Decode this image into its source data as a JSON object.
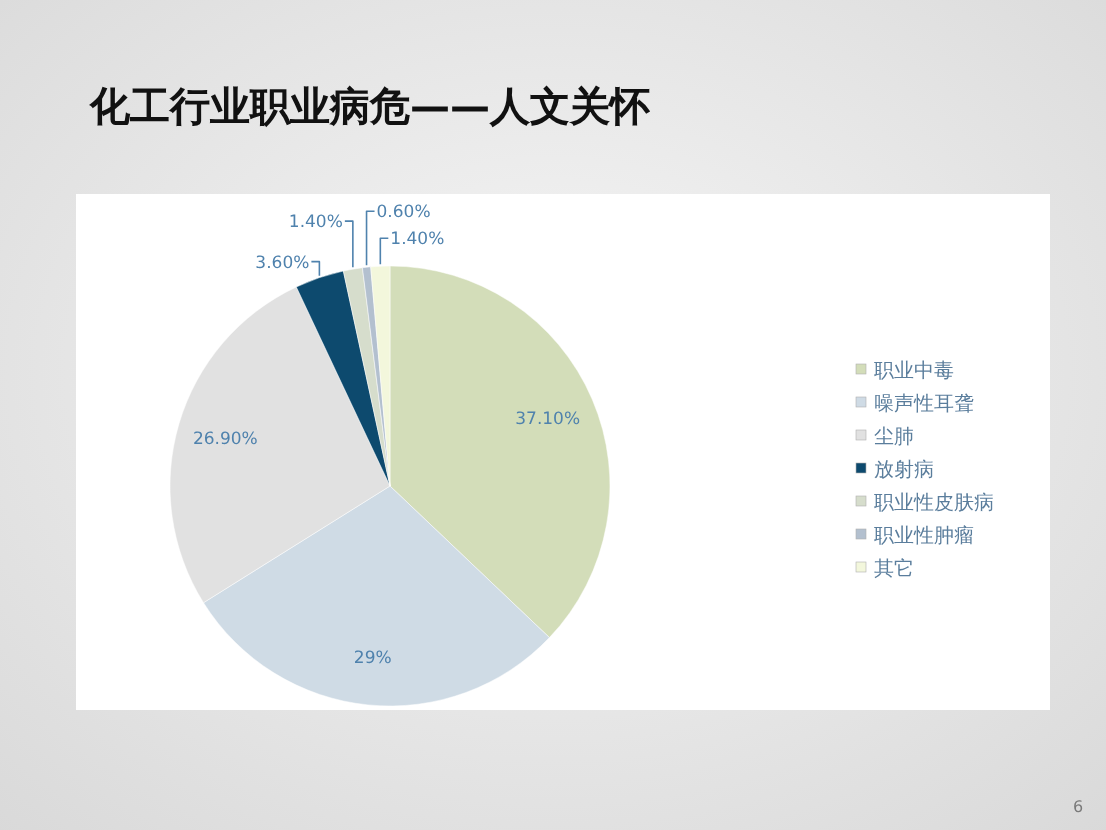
{
  "chart_data": {
    "type": "pie",
    "title": "化工行业职业病危——人文关怀",
    "categories": [
      "职业中毒",
      "噪声性耳聋",
      "尘肺",
      "放射病",
      "职业性皮肤病",
      "职业性肿瘤",
      "其它"
    ],
    "values": [
      37.1,
      29,
      26.9,
      3.6,
      1.4,
      0.6,
      1.4
    ],
    "colors": [
      "#d3ddb9",
      "#cfdbe5",
      "#e1e1e1",
      "#0d4a6e",
      "#d6ddcc",
      "#b3c0cf",
      "#f3f7dc"
    ],
    "value_labels": [
      "37.10%",
      "29%",
      "26.90%",
      "3.60%",
      "1.40%",
      "0.60%",
      "1.40%"
    ],
    "legend": "right",
    "annotations": [
      "6"
    ]
  }
}
